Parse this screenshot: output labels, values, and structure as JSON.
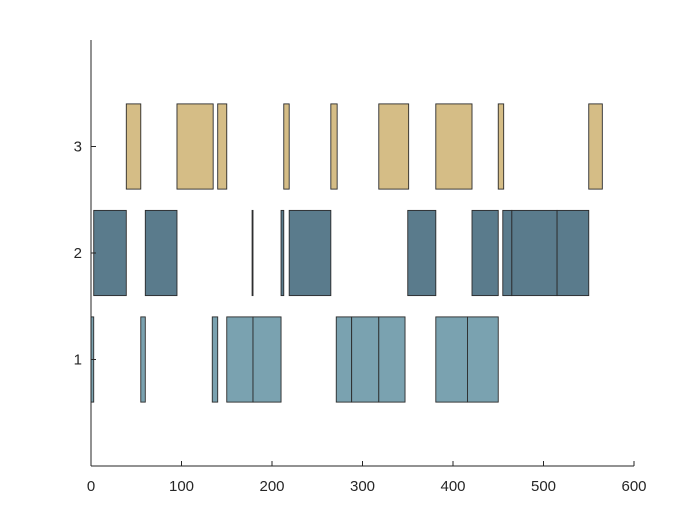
{
  "chart_data": {
    "type": "bar",
    "orientation": "horizontal-segments",
    "title": "",
    "xlabel": "",
    "ylabel": "",
    "xlim": [
      0,
      600
    ],
    "ylim": [
      0,
      4
    ],
    "grid": false,
    "x_ticks": [
      {
        "value": 0,
        "label": "0"
      },
      {
        "value": 100,
        "label": "100"
      },
      {
        "value": 200,
        "label": "200"
      },
      {
        "value": 300,
        "label": "300"
      },
      {
        "value": 400,
        "label": "400"
      },
      {
        "value": 500,
        "label": "500"
      },
      {
        "value": 600,
        "label": "600"
      }
    ],
    "y_ticks": [
      {
        "value": 1,
        "label": "1"
      },
      {
        "value": 2,
        "label": "2"
      },
      {
        "value": 3,
        "label": "3"
      }
    ],
    "bar_height": 0.8,
    "series": [
      {
        "y": 1,
        "color": "#7aa2b0",
        "segments": [
          [
            0,
            3
          ],
          [
            55,
            60
          ],
          [
            134,
            140
          ],
          [
            150,
            179
          ],
          [
            179,
            210
          ],
          [
            271,
            288
          ],
          [
            288,
            318
          ],
          [
            318,
            347
          ],
          [
            381,
            416
          ],
          [
            416,
            450
          ]
        ]
      },
      {
        "y": 2,
        "color": "#5a7b8c",
        "segments": [
          [
            3,
            39
          ],
          [
            60,
            95
          ],
          [
            178,
            179
          ],
          [
            210,
            213
          ],
          [
            219,
            265
          ],
          [
            350,
            381
          ],
          [
            421,
            450
          ],
          [
            455,
            465
          ],
          [
            465,
            515
          ],
          [
            515,
            550
          ]
        ]
      },
      {
        "y": 3,
        "color": "#d5bd86",
        "segments": [
          [
            39,
            55
          ],
          [
            95,
            135
          ],
          [
            140,
            150
          ],
          [
            213,
            219
          ],
          [
            265,
            272
          ],
          [
            318,
            351
          ],
          [
            381,
            421
          ],
          [
            450,
            456
          ],
          [
            550,
            565
          ]
        ]
      }
    ]
  }
}
